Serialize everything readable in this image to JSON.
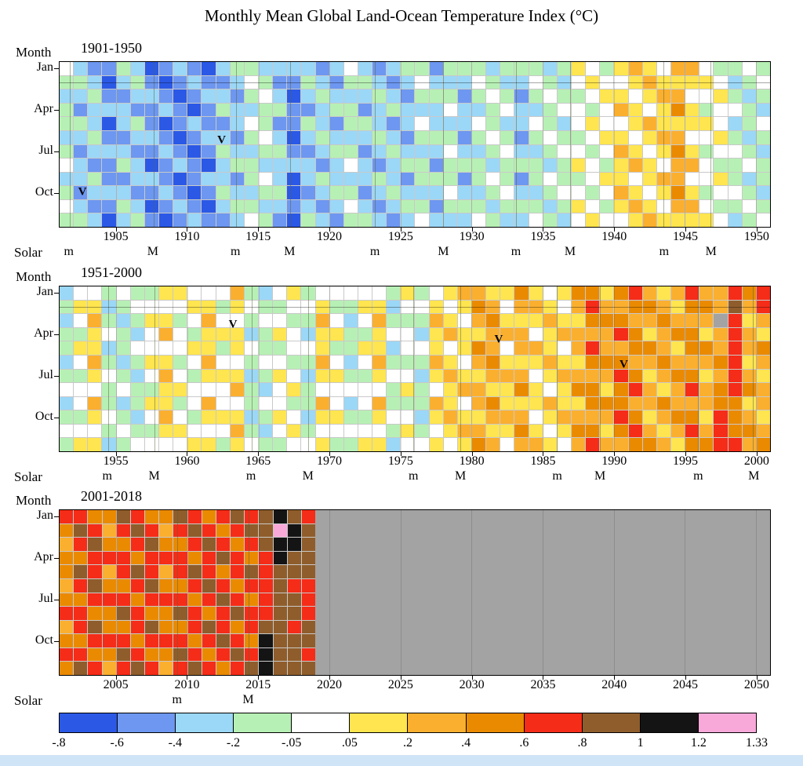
{
  "title": "Monthly Mean Global Land-Ocean Temperature Index (°C)",
  "chart_data": {
    "type": "heatmap",
    "title": "Monthly Mean Global Land-Ocean Temperature Index (°C)",
    "unit": "°C",
    "month_axis_label": "Month",
    "solar_axis_label": "Solar",
    "month_tick_labels": [
      "Jan",
      "Apr",
      "Jul",
      "Oct"
    ],
    "month_tick_rows": [
      0,
      3,
      6,
      9
    ],
    "legend": {
      "bin_edges": [
        "-.8",
        "-.6",
        "-.4",
        "-.2",
        "-.05",
        ".05",
        ".2",
        ".4",
        ".6",
        ".8",
        "1",
        "1.2",
        "1.33"
      ],
      "colors": [
        "#2b59e6",
        "#6d97f0",
        "#9bd7f7",
        "#b7f0b4",
        "#ffffff",
        "#ffe54f",
        "#fbaf2f",
        "#ea8a00",
        "#f52c18",
        "#8f5d2b",
        "#141414",
        "#f8a9da"
      ],
      "nodata_color": "#a3a3a3"
    },
    "cell_encoding": "one character per year per month row; 0-9,a,b = color bin index from legend.colors (cold to hot), x = no data",
    "panels": [
      {
        "era_label": "1901-1950",
        "start_year": 1901,
        "axis_span_years": 50,
        "data_span_years": 50,
        "ref_line": true,
        "x_ticks": [
          1905,
          1910,
          1915,
          1920,
          1925,
          1930,
          1935,
          1940,
          1945,
          1950
        ],
        "solar_markers": [
          {
            "label": "m",
            "year": 1901.7
          },
          {
            "label": "M",
            "year": 1907.6
          },
          {
            "label": "m",
            "year": 1913.4
          },
          {
            "label": "M",
            "year": 1917.2
          },
          {
            "label": "m",
            "year": 1923.2
          },
          {
            "label": "M",
            "year": 1928.0
          },
          {
            "label": "m",
            "year": 1933.1
          },
          {
            "label": "M",
            "year": 1936.9
          },
          {
            "label": "m",
            "year": 1943.5
          },
          {
            "label": "M",
            "year": 1946.8
          }
        ],
        "volcano_markers": [
          {
            "label": "V",
            "year": 1902.6,
            "row": 9.0
          },
          {
            "label": "V",
            "year": 1912.4,
            "row": 5.2
          }
        ],
        "rows_jan_to_dec": [
          "42113201210233222212421233133323332354356546643343",
          "33202310121124311321332124222432243245445655554234",
          "22311221012213420232223213331343134334554566445323",
          "31222112101322331123312322242234223443465457534432",
          "33202310121124311321332124222432243245445655554234",
          "22311221012213420232223213331343134334554566445323",
          "31222112101322331123312322242234223443465457534432",
          "42113201210233222212421233133323332354356546643343",
          "22311221012213420232223213331343134334554566445323",
          "31222112101322330123312322242234223443465457534432",
          "42113201210233221212421233133323332354356546643343",
          "33202310121124310321332124222432243245445655554234"
        ]
      },
      {
        "era_label": "1951-2000",
        "start_year": 1951,
        "axis_span_years": 50,
        "data_span_years": 50,
        "ref_line": true,
        "x_ticks": [
          1955,
          1960,
          1965,
          1970,
          1975,
          1980,
          1985,
          1990,
          1995,
          2000
        ],
        "solar_markers": [
          {
            "label": "m",
            "year": 1954.4
          },
          {
            "label": "M",
            "year": 1957.7
          },
          {
            "label": "m",
            "year": 1964.5
          },
          {
            "label": "M",
            "year": 1968.5
          },
          {
            "label": "m",
            "year": 1975.9
          },
          {
            "label": "M",
            "year": 1979.2
          },
          {
            "label": "m",
            "year": 1986.0
          },
          {
            "label": "M",
            "year": 1989.0
          },
          {
            "label": "m",
            "year": 1995.9
          },
          {
            "label": "M",
            "year": 1999.8
          }
        ],
        "volcano_markers": [
          {
            "label": "V",
            "year": 1963.2,
            "row": 2.3
          },
          {
            "label": "V",
            "year": 1981.9,
            "row": 3.4
          },
          {
            "label": "V",
            "year": 1990.7,
            "row": 5.2
          }
        ],
        "rows_jan_to_dec": [
          "24434335544463245344444353456655754577578656866878",
          "35523444455354334453355244545764665468667765776968",
          "2463235534644344336424633365467555655777667666x856",
          "33543246435552354255335442565566645666687567756865",
          "35523444455354334453355244545764665468667765776867",
          "24632355346443443364246333654675556557776676667856",
          "33543246435552354255335442565566645666687567756865",
          "44434335544463245344444353456655754577578656867876",
          "24632355346443443364246333654675556557776676667756",
          "33543246435552354255335442565566645666687567758765",
          "44434335544463245344444353456655754577578656868776",
          "35523444455354334453355244545764665468667765778867"
        ]
      },
      {
        "era_label": "2001-2018",
        "start_year": 2001,
        "axis_span_years": 50,
        "data_span_years": 18,
        "ref_line": false,
        "x_ticks": [
          2005,
          2010,
          2015,
          2020,
          2025,
          2030,
          2035,
          2040,
          2045,
          2050
        ],
        "solar_markers": [
          {
            "label": "m",
            "year": 2009.3
          },
          {
            "label": "M",
            "year": 2014.3
          }
        ],
        "volcano_markers": [],
        "rows_jan_to_dec": [
          "887798779878989a98",
          "798689868987899ba9",
          "689778977898789aa9",
          "778887888789878a99",
          "798689868987898999",
          "689778977898788988",
          "778887888789878998",
          "887798779878988998",
          "689778977898789989",
          "77888788878987a999",
          "88779877987898a998",
          "79868986898789a999"
        ]
      }
    ]
  }
}
